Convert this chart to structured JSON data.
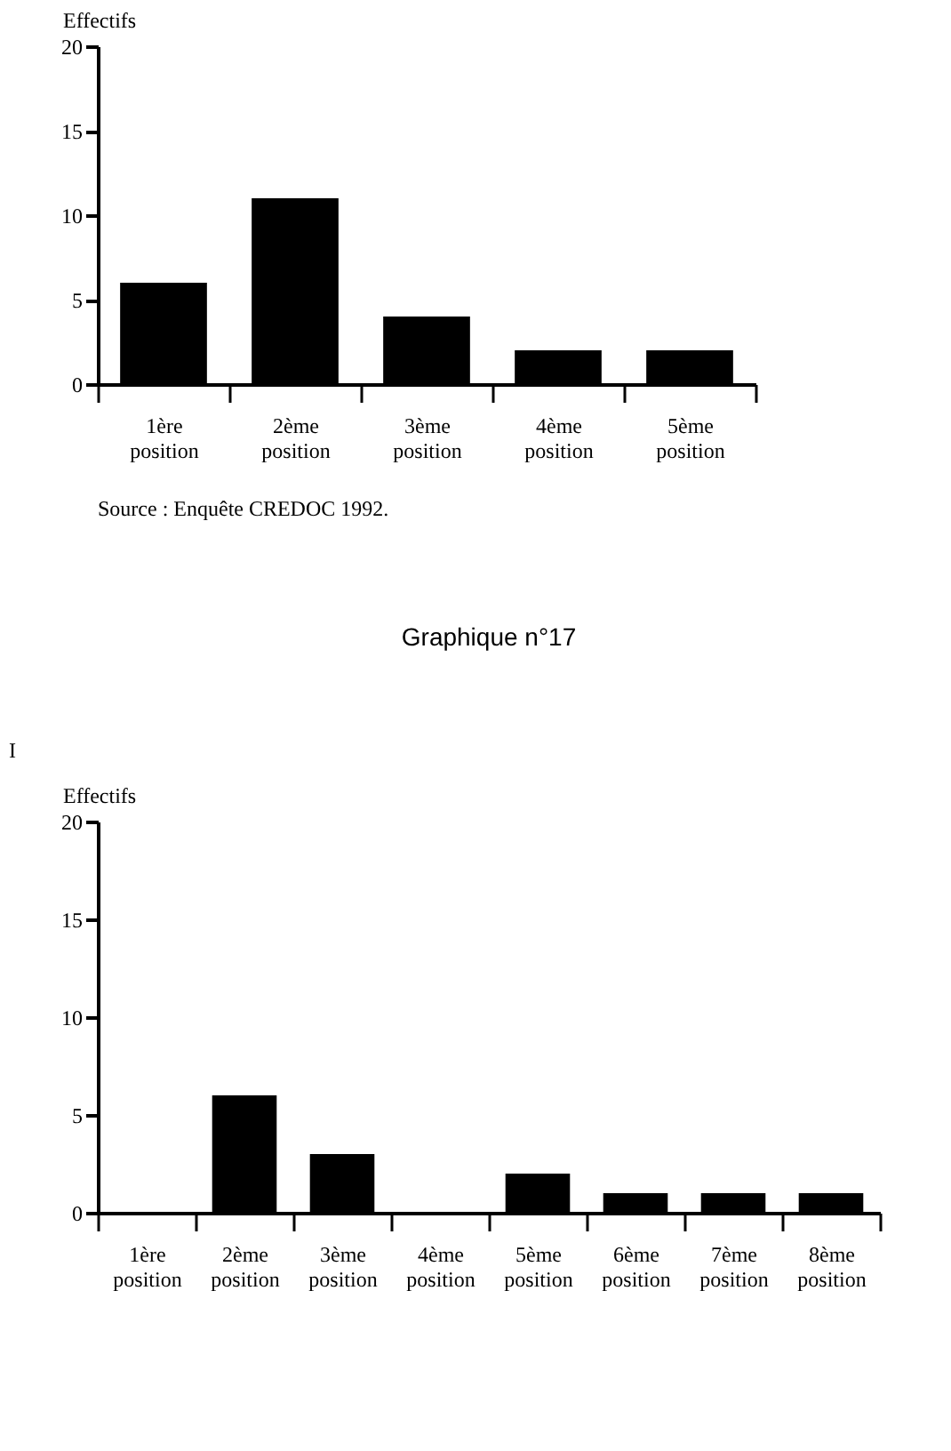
{
  "chart_data": [
    {
      "type": "bar",
      "ylabel": "Effectifs",
      "categories": [
        "1ère position",
        "2ème position",
        "3ème position",
        "4ème position",
        "5ème position"
      ],
      "values": [
        6,
        11,
        4,
        2,
        2
      ],
      "color": "#000000",
      "ylim": [
        0,
        20
      ],
      "yticks": [
        0,
        5,
        10,
        15,
        20
      ],
      "grid": false,
      "annotations": [
        "Source : Enquête CREDOC 1992."
      ]
    },
    {
      "type": "bar",
      "title": "Graphique n°17",
      "ylabel": "Effectifs",
      "categories": [
        "1ère position",
        "2ème position",
        "3ème position",
        "4ème position",
        "5ème position",
        "6ème position",
        "7ème position",
        "8ème position"
      ],
      "values": [
        0,
        6,
        3,
        0,
        2,
        1,
        1,
        1
      ],
      "color": "#000000",
      "ylim": [
        0,
        20
      ],
      "yticks": [
        0,
        5,
        10,
        15,
        20
      ],
      "grid": false,
      "annotations": [
        "I"
      ]
    }
  ]
}
